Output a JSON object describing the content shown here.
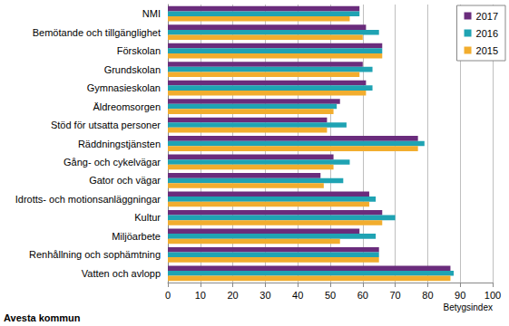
{
  "chart_data": {
    "type": "bar",
    "orientation": "horizontal",
    "annotation": "Avesta kommun",
    "x_label": "Betygsindex",
    "categories": [
      "NMI",
      "Bemötande och tillgänglighet",
      "Förskolan",
      "Grundskolan",
      "Gymnasieskolan",
      "Äldreomsorgen",
      "Stöd för utsatta personer",
      "Räddningstjänsten",
      "Gång- och cykelvägar",
      "Gator och vägar",
      "Idrotts- och motionsanläggningar",
      "Kultur",
      "Miljöarbete",
      "Renhållning och sophämtning",
      "Vatten och avlopp"
    ],
    "series": [
      {
        "name": "2017",
        "color": "#6a2c7c",
        "values": [
          59,
          61,
          66,
          60,
          61,
          53,
          49,
          77,
          51,
          47,
          62,
          66,
          59,
          65,
          87
        ]
      },
      {
        "name": "2016",
        "color": "#1fa3b3",
        "values": [
          59,
          65,
          66,
          63,
          63,
          52,
          55,
          79,
          56,
          54,
          64,
          70,
          64,
          65,
          88
        ]
      },
      {
        "name": "2015",
        "color": "#f2ad2e",
        "values": [
          56,
          60,
          66,
          59,
          61,
          51,
          49,
          77,
          51,
          48,
          62,
          66,
          53,
          65,
          87
        ]
      }
    ],
    "xlim": [
      0,
      100
    ],
    "xticks": [
      0,
      10,
      20,
      30,
      40,
      50,
      60,
      70,
      80,
      90,
      100
    ],
    "grid": true,
    "legend": "top-right"
  }
}
